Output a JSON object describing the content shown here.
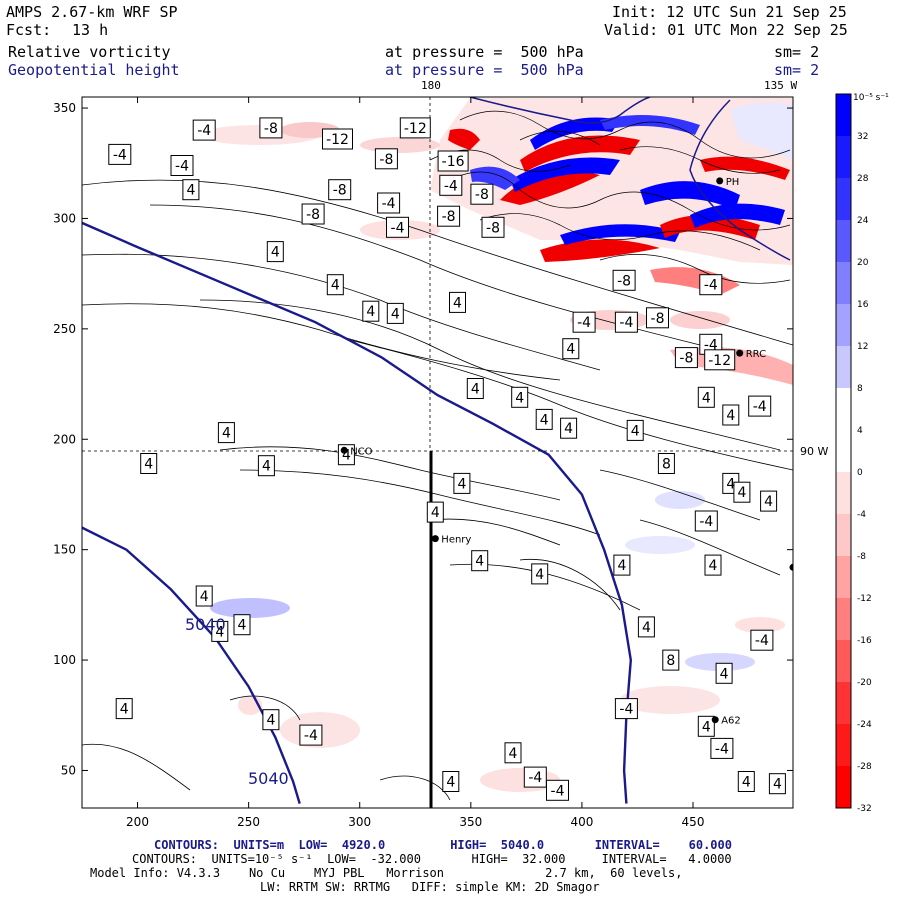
{
  "header": {
    "model": "AMPS 2.67-km WRF SP",
    "fcst_label": "Fcst:",
    "fcst_value": "13 h",
    "init": "Init: 12 UTC Sun 21 Sep 25",
    "valid": "Valid: 01 UTC Mon 22 Sep 25",
    "field1_name": "Relative vorticity",
    "field1_level": "at pressure =  500 hPa",
    "field1_sm": "sm= 2",
    "field2_name": "Geopotential height",
    "field2_level": "at pressure =  500 hPa",
    "field2_sm": "sm= 2"
  },
  "map_labels": {
    "lon_180": "180",
    "lon_135w": "135 W",
    "lat_90w": "90 W",
    "station_nco": "NCO",
    "station_henry": "Henry",
    "station_rrc": "RRC",
    "station_ph": "PH",
    "station_a62": "A62",
    "height_label_1": "5040",
    "height_label_2": "5040"
  },
  "colorbar": {
    "unit": "10⁻⁵ s⁻¹",
    "ticks": [
      "32",
      "28",
      "24",
      "20",
      "16",
      "12",
      "8",
      "4",
      "0",
      "-4",
      "-8",
      "-12",
      "-16",
      "-20",
      "-24",
      "-28",
      "-32"
    ],
    "colors": [
      "#0000ff",
      "#1a1aff",
      "#3333ff",
      "#5959ff",
      "#7f7fff",
      "#a3a3ff",
      "#c8c8ff",
      "#ffffff",
      "#ffffff",
      "#ffe0e0",
      "#ffc8c8",
      "#ffa3a3",
      "#ff7f7f",
      "#ff5959",
      "#ff3333",
      "#ff1a1a",
      "#ff0000"
    ]
  },
  "footer": {
    "line1": "CONTOURS:  UNITS=m  LOW=  4920.0         HIGH=  5040.0       INTERVAL=    60.000",
    "line2": "CONTOURS:  UNITS=10⁻⁵ s⁻¹  LOW=  -32.000       HIGH=  32.000     INTERVAL=   4.0000",
    "line3": "Model Info: V4.3.3    No Cu    MYJ PBL   Morrison              2.7 km,  60 levels,",
    "line4": "LW: RRTM SW: RRTMG   DIFF: simple KM: 2D Smagor"
  },
  "chart_data": {
    "type": "heatmap",
    "xlim": [
      175,
      495
    ],
    "ylim": [
      33,
      355
    ],
    "x_ticks": [
      200,
      250,
      300,
      350,
      400,
      450
    ],
    "y_ticks": [
      50,
      100,
      150,
      200,
      250,
      300,
      350
    ],
    "geopotential_contours": [
      {
        "label": "5040",
        "points": [
          [
            175,
            298
          ],
          [
            200,
            287
          ],
          [
            240,
            270
          ],
          [
            280,
            253
          ],
          [
            310,
            237
          ],
          [
            335,
            220
          ],
          [
            360,
            207
          ],
          [
            385,
            193
          ],
          [
            400,
            175
          ],
          [
            410,
            150
          ],
          [
            418,
            125
          ],
          [
            422,
            100
          ],
          [
            420,
            75
          ],
          [
            419,
            50
          ],
          [
            420,
            35
          ]
        ]
      },
      {
        "label": "5040",
        "points": [
          [
            175,
            160
          ],
          [
            195,
            150
          ],
          [
            215,
            132
          ],
          [
            235,
            110
          ],
          [
            250,
            88
          ],
          [
            262,
            65
          ],
          [
            270,
            45
          ],
          [
            273,
            35
          ]
        ]
      }
    ],
    "vorticity_labels": [
      {
        "x": 230,
        "y": 340,
        "v": "-4"
      },
      {
        "x": 260,
        "y": 341,
        "v": "-8"
      },
      {
        "x": 290,
        "y": 336,
        "v": "-12"
      },
      {
        "x": 325,
        "y": 341,
        "v": "-12"
      },
      {
        "x": 192,
        "y": 329,
        "v": "-4"
      },
      {
        "x": 220,
        "y": 324,
        "v": "-4"
      },
      {
        "x": 312,
        "y": 327,
        "v": "-8"
      },
      {
        "x": 342,
        "y": 326,
        "v": "-16"
      },
      {
        "x": 224,
        "y": 313,
        "v": "4"
      },
      {
        "x": 291,
        "y": 313,
        "v": "-8"
      },
      {
        "x": 341,
        "y": 315,
        "v": "-4"
      },
      {
        "x": 355,
        "y": 311,
        "v": "-8"
      },
      {
        "x": 279,
        "y": 302,
        "v": "-8"
      },
      {
        "x": 313,
        "y": 307,
        "v": "-4"
      },
      {
        "x": 340,
        "y": 301,
        "v": "-8"
      },
      {
        "x": 317,
        "y": 296,
        "v": "-4"
      },
      {
        "x": 360,
        "y": 296,
        "v": "-8"
      },
      {
        "x": 262,
        "y": 285,
        "v": "4"
      },
      {
        "x": 289,
        "y": 270,
        "v": "4"
      },
      {
        "x": 419,
        "y": 272,
        "v": "-8"
      },
      {
        "x": 458,
        "y": 270,
        "v": "-4"
      },
      {
        "x": 344,
        "y": 262,
        "v": "4"
      },
      {
        "x": 305,
        "y": 258,
        "v": "4"
      },
      {
        "x": 316,
        "y": 257,
        "v": "4"
      },
      {
        "x": 434,
        "y": 255,
        "v": "-8"
      },
      {
        "x": 401,
        "y": 253,
        "v": "-4"
      },
      {
        "x": 420,
        "y": 253,
        "v": "-4"
      },
      {
        "x": 458,
        "y": 243,
        "v": "-4"
      },
      {
        "x": 395,
        "y": 241,
        "v": "4"
      },
      {
        "x": 447,
        "y": 237,
        "v": "-8"
      },
      {
        "x": 462,
        "y": 236,
        "v": "-12"
      },
      {
        "x": 352,
        "y": 223,
        "v": "4"
      },
      {
        "x": 372,
        "y": 219,
        "v": "4"
      },
      {
        "x": 456,
        "y": 219,
        "v": "4"
      },
      {
        "x": 480,
        "y": 215,
        "v": "-4"
      },
      {
        "x": 467,
        "y": 211,
        "v": "4"
      },
      {
        "x": 383,
        "y": 209,
        "v": "4"
      },
      {
        "x": 394,
        "y": 205,
        "v": "4"
      },
      {
        "x": 424,
        "y": 204,
        "v": "4"
      },
      {
        "x": 240,
        "y": 203,
        "v": "4"
      },
      {
        "x": 294,
        "y": 193,
        "v": "4"
      },
      {
        "x": 205,
        "y": 189,
        "v": "4"
      },
      {
        "x": 258,
        "y": 188,
        "v": "4"
      },
      {
        "x": 438,
        "y": 189,
        "v": "8"
      },
      {
        "x": 346,
        "y": 180,
        "v": "4"
      },
      {
        "x": 467,
        "y": 180,
        "v": "4"
      },
      {
        "x": 472,
        "y": 176,
        "v": "4"
      },
      {
        "x": 484,
        "y": 172,
        "v": "4"
      },
      {
        "x": 334,
        "y": 167,
        "v": "4"
      },
      {
        "x": 456,
        "y": 163,
        "v": "-4"
      },
      {
        "x": 354,
        "y": 145,
        "v": "4"
      },
      {
        "x": 381,
        "y": 139,
        "v": "4"
      },
      {
        "x": 418,
        "y": 143,
        "v": "4"
      },
      {
        "x": 459,
        "y": 143,
        "v": "4"
      },
      {
        "x": 230,
        "y": 129,
        "v": "4"
      },
      {
        "x": 237,
        "y": 113,
        "v": "4"
      },
      {
        "x": 247,
        "y": 116,
        "v": "4"
      },
      {
        "x": 429,
        "y": 115,
        "v": "4"
      },
      {
        "x": 481,
        "y": 109,
        "v": "-4"
      },
      {
        "x": 440,
        "y": 100,
        "v": "8"
      },
      {
        "x": 464,
        "y": 94,
        "v": "4"
      },
      {
        "x": 194,
        "y": 78,
        "v": "4"
      },
      {
        "x": 260,
        "y": 73,
        "v": "4"
      },
      {
        "x": 420,
        "y": 78,
        "v": "-4"
      },
      {
        "x": 278,
        "y": 66,
        "v": "-4"
      },
      {
        "x": 456,
        "y": 70,
        "v": "4"
      },
      {
        "x": 463,
        "y": 60,
        "v": "-4"
      },
      {
        "x": 369,
        "y": 58,
        "v": "4"
      },
      {
        "x": 341,
        "y": 45,
        "v": "4"
      },
      {
        "x": 379,
        "y": 47,
        "v": "-4"
      },
      {
        "x": 389,
        "y": 41,
        "v": "-4"
      },
      {
        "x": 474,
        "y": 45,
        "v": "4"
      },
      {
        "x": 488,
        "y": 44,
        "v": "4"
      }
    ],
    "stations": [
      {
        "name": "NCO",
        "x": 293,
        "y": 195
      },
      {
        "name": "Henry",
        "x": 334,
        "y": 155
      },
      {
        "name": "RRC",
        "x": 471,
        "y": 239
      },
      {
        "name": "PH",
        "x": 462,
        "y": 317
      },
      {
        "name": "A62",
        "x": 460,
        "y": 73
      },
      {
        "name": "",
        "x": 495,
        "y": 142
      }
    ]
  }
}
